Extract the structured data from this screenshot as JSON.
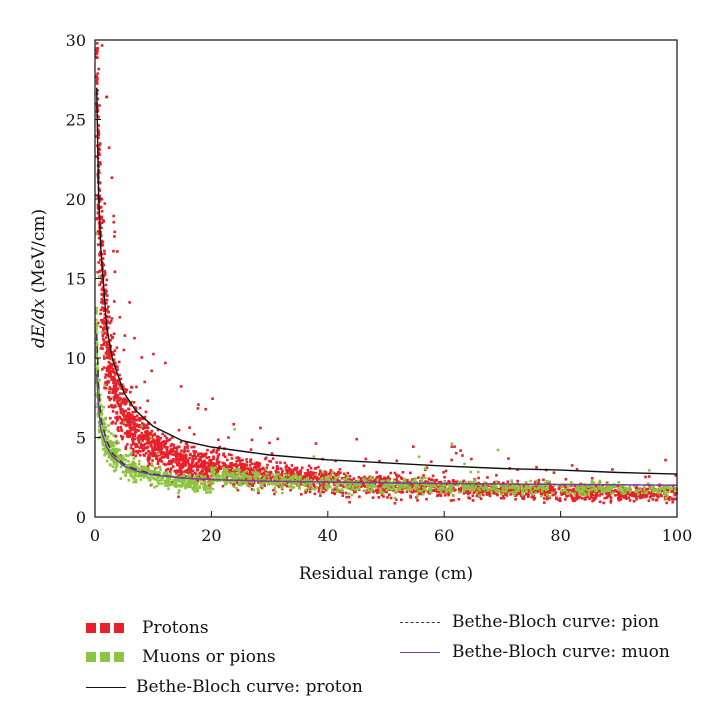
{
  "chart_data": {
    "type": "scatter",
    "xlabel": "Residual range (cm)",
    "ylabel_italic": "dE/dx",
    "ylabel_rest": " (MeV/cm)",
    "xlim": [
      0,
      100
    ],
    "ylim": [
      0,
      30
    ],
    "xticks": [
      "0",
      "20",
      "40",
      "60",
      "80",
      "100"
    ],
    "yticks": [
      "0",
      "5",
      "10",
      "15",
      "20",
      "25",
      "30"
    ],
    "series": [
      {
        "name": "Protons",
        "kind": "points",
        "color": "#e8202a",
        "model": {
          "a": 16.5,
          "p": 0.58,
          "c": 0.3,
          "xmin": 0.2,
          "xmax": 100,
          "count": 3200,
          "spread": 0.17
        }
      },
      {
        "name": "Muons or pions",
        "kind": "points",
        "color": "#8cc63f",
        "model": {
          "a": 6.2,
          "p": 0.38,
          "c": 0.6,
          "xmin": 0.2,
          "xmax": 100,
          "count": 1500,
          "spread": 0.12
        }
      },
      {
        "name": "Bethe-Bloch curve: proton",
        "kind": "curve",
        "color": "#111111",
        "dash": "",
        "points": [
          [
            0.3,
            27.0
          ],
          [
            0.6,
            20.5
          ],
          [
            1,
            16.9
          ],
          [
            2,
            12.0
          ],
          [
            3,
            9.9
          ],
          [
            5,
            7.8
          ],
          [
            7,
            6.7
          ],
          [
            10,
            5.7
          ],
          [
            15,
            4.8
          ],
          [
            20,
            4.4
          ],
          [
            30,
            3.9
          ],
          [
            40,
            3.6
          ],
          [
            50,
            3.4
          ],
          [
            60,
            3.2
          ],
          [
            70,
            3.05
          ],
          [
            80,
            2.95
          ],
          [
            90,
            2.8
          ],
          [
            100,
            2.7
          ]
        ]
      },
      {
        "name": "Bethe-Bloch curve: pion",
        "kind": "curve",
        "color": "#333333",
        "dash": "7,5",
        "points": [
          [
            0.3,
            11.5
          ],
          [
            0.6,
            8.4
          ],
          [
            1,
            6.2
          ],
          [
            2,
            4.8
          ],
          [
            3,
            4.0
          ],
          [
            5,
            3.3
          ],
          [
            7,
            3.0
          ],
          [
            10,
            2.7
          ],
          [
            15,
            2.45
          ],
          [
            20,
            2.35
          ],
          [
            30,
            2.25
          ],
          [
            40,
            2.2
          ],
          [
            60,
            2.1
          ],
          [
            80,
            2.05
          ],
          [
            100,
            2.0
          ]
        ]
      },
      {
        "name": "Bethe-Bloch curve: muon",
        "kind": "curve",
        "color": "#7a3fa0",
        "dash": "",
        "points": [
          [
            0.3,
            9.0
          ],
          [
            0.6,
            7.0
          ],
          [
            1,
            5.5
          ],
          [
            2,
            4.4
          ],
          [
            3,
            3.8
          ],
          [
            5,
            3.2
          ],
          [
            7,
            2.9
          ],
          [
            10,
            2.65
          ],
          [
            15,
            2.45
          ],
          [
            20,
            2.35
          ],
          [
            30,
            2.25
          ],
          [
            40,
            2.2
          ],
          [
            60,
            2.1
          ],
          [
            80,
            2.05
          ],
          [
            100,
            2.0
          ]
        ]
      }
    ],
    "legend": [
      {
        "label": "Protons",
        "swatch": "squares",
        "color": "#e8202a"
      },
      {
        "label": "Muons or pions",
        "swatch": "squares",
        "color": "#8cc63f"
      },
      {
        "label": "Bethe-Bloch curve: proton",
        "swatch": "line",
        "color": "#111111"
      },
      {
        "label": "Bethe-Bloch curve: pion",
        "swatch": "dashed",
        "color": "#333333"
      },
      {
        "label": "Bethe-Bloch curve: muon",
        "swatch": "line",
        "color": "#7a3fa0"
      }
    ]
  }
}
